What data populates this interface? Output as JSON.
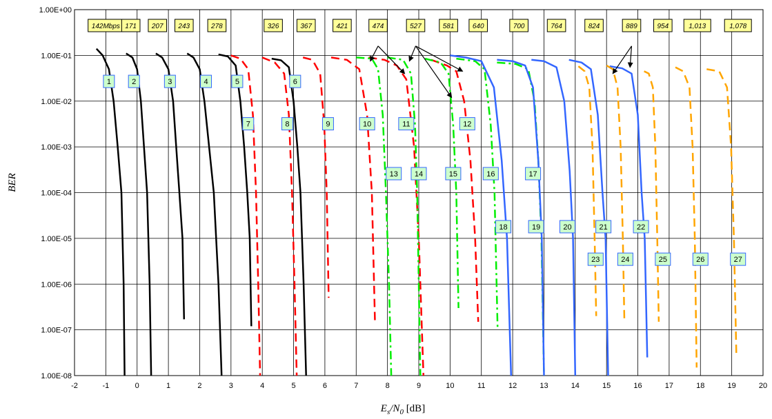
{
  "chart_data": {
    "type": "line",
    "xlabel": {
      "base1": "E",
      "sub1": "s",
      "sep": "/N",
      "sub2": "0",
      "unit": " [dB]"
    },
    "ylabel": "BER",
    "xlim": [
      -2,
      20
    ],
    "ylim_log10": [
      -8,
      0
    ],
    "y_scale": "log",
    "grid": true,
    "x_ticks": [
      "-2",
      "-1",
      "0",
      "1",
      "2",
      "3",
      "4",
      "5",
      "6",
      "7",
      "8",
      "9",
      "10",
      "11",
      "12",
      "13",
      "14",
      "15",
      "16",
      "17",
      "18",
      "19",
      "20"
    ],
    "y_ticks": [
      "1.00E+00",
      "1.00E-01",
      "1.00E-02",
      "1.00E-03",
      "1.00E-04",
      "1.00E-05",
      "1.00E-06",
      "1.00E-07",
      "1.00E-08"
    ],
    "colors": {
      "black": "#000000",
      "red": "#ff0000",
      "green": "#00ee00",
      "blue": "#3366ff",
      "orange": "#ffa500",
      "rate_box": "#ffff99",
      "num_box": "#ccffcc"
    },
    "rate_labels": [
      {
        "text": "142Mbps",
        "x": -1.0
      },
      {
        "text": "171",
        "x": -0.2
      },
      {
        "text": "207",
        "x": 0.65
      },
      {
        "text": "243",
        "x": 1.5
      },
      {
        "text": "278",
        "x": 2.55
      },
      {
        "text": "326",
        "x": 4.35
      },
      {
        "text": "367",
        "x": 5.4
      },
      {
        "text": "421",
        "x": 6.55
      },
      {
        "text": "474",
        "x": 7.7
      },
      {
        "text": "527",
        "x": 8.9
      },
      {
        "text": "581",
        "x": 9.95
      },
      {
        "text": "640",
        "x": 10.9
      },
      {
        "text": "700",
        "x": 12.2
      },
      {
        "text": "764",
        "x": 13.4
      },
      {
        "text": "824",
        "x": 14.6
      },
      {
        "text": "889",
        "x": 15.8
      },
      {
        "text": "954",
        "x": 16.8
      },
      {
        "text": "1,013",
        "x": 17.9
      },
      {
        "text": "1,078",
        "x": 19.2
      }
    ],
    "curve_labels": [
      {
        "text": "1",
        "x": -0.9,
        "y": 0.027
      },
      {
        "text": "2",
        "x": -0.1,
        "y": 0.027
      },
      {
        "text": "3",
        "x": 1.05,
        "y": 0.027
      },
      {
        "text": "4",
        "x": 2.2,
        "y": 0.027
      },
      {
        "text": "5",
        "x": 3.2,
        "y": 0.027
      },
      {
        "text": "6",
        "x": 5.05,
        "y": 0.027
      },
      {
        "text": "7",
        "x": 3.55,
        "y": 0.0032
      },
      {
        "text": "8",
        "x": 4.8,
        "y": 0.0032
      },
      {
        "text": "9",
        "x": 6.1,
        "y": 0.0032
      },
      {
        "text": "10",
        "x": 7.35,
        "y": 0.0032
      },
      {
        "text": "11",
        "x": 8.6,
        "y": 0.0032
      },
      {
        "text": "12",
        "x": 10.55,
        "y": 0.0032
      },
      {
        "text": "13",
        "x": 8.2,
        "y": 0.00026
      },
      {
        "text": "14",
        "x": 9.0,
        "y": 0.00026
      },
      {
        "text": "15",
        "x": 10.1,
        "y": 0.00026
      },
      {
        "text": "16",
        "x": 11.3,
        "y": 0.00026
      },
      {
        "text": "17",
        "x": 12.65,
        "y": 0.00026
      },
      {
        "text": "18",
        "x": 11.7,
        "y": 1.8e-05
      },
      {
        "text": "19",
        "x": 12.75,
        "y": 1.8e-05
      },
      {
        "text": "20",
        "x": 13.75,
        "y": 1.8e-05
      },
      {
        "text": "21",
        "x": 14.9,
        "y": 1.8e-05
      },
      {
        "text": "22",
        "x": 16.1,
        "y": 1.8e-05
      },
      {
        "text": "23",
        "x": 14.65,
        "y": 3.5e-06
      },
      {
        "text": "24",
        "x": 15.6,
        "y": 3.5e-06
      },
      {
        "text": "25",
        "x": 16.8,
        "y": 3.5e-06
      },
      {
        "text": "26",
        "x": 18.0,
        "y": 3.5e-06
      },
      {
        "text": "27",
        "x": 19.2,
        "y": 3.5e-06
      }
    ],
    "series": [
      {
        "id": "1",
        "color": "black",
        "dash": "solid",
        "x": [
          -1.3,
          -1.1,
          -0.9,
          -0.75,
          -0.62,
          -0.5,
          -0.43,
          -0.4
        ],
        "y": [
          0.14,
          0.1,
          0.05,
          0.01,
          0.001,
          0.0001,
          1e-06,
          1e-08
        ]
      },
      {
        "id": "2",
        "color": "black",
        "dash": "solid",
        "x": [
          -0.35,
          -0.15,
          0.0,
          0.12,
          0.22,
          0.32,
          0.4,
          0.45
        ],
        "y": [
          0.11,
          0.09,
          0.05,
          0.01,
          0.001,
          0.0001,
          1e-06,
          1e-08
        ]
      },
      {
        "id": "3",
        "color": "black",
        "dash": "solid",
        "x": [
          0.6,
          0.8,
          1.0,
          1.15,
          1.25,
          1.35,
          1.45,
          1.5
        ],
        "y": [
          0.11,
          0.09,
          0.05,
          0.01,
          0.001,
          0.0001,
          1e-05,
          1.7e-07
        ]
      },
      {
        "id": "4",
        "color": "black",
        "dash": "solid",
        "x": [
          1.6,
          1.8,
          2.0,
          2.15,
          2.3,
          2.45,
          2.6,
          2.7
        ],
        "y": [
          0.11,
          0.09,
          0.05,
          0.01,
          0.001,
          0.0001,
          1e-06,
          1e-08
        ]
      },
      {
        "id": "5",
        "color": "black",
        "dash": "solid",
        "x": [
          2.6,
          2.9,
          3.15,
          3.3,
          3.42,
          3.52,
          3.6,
          3.65
        ],
        "y": [
          0.105,
          0.095,
          0.06,
          0.01,
          0.001,
          0.0001,
          1e-05,
          1.2e-07
        ]
      },
      {
        "id": "6",
        "color": "black",
        "dash": "solid",
        "x": [
          4.3,
          4.6,
          4.85,
          5.0,
          5.12,
          5.22,
          5.32,
          5.4
        ],
        "y": [
          0.085,
          0.078,
          0.055,
          0.01,
          0.001,
          0.0001,
          1e-06,
          1e-08
        ]
      },
      {
        "id": "7",
        "color": "red",
        "dash": "dash",
        "x": [
          3.0,
          3.3,
          3.55,
          3.7,
          3.8,
          3.87,
          3.93
        ],
        "y": [
          0.1,
          0.085,
          0.05,
          0.005,
          0.0001,
          1e-06,
          1e-08
        ]
      },
      {
        "id": "8",
        "color": "red",
        "dash": "dash",
        "x": [
          4.0,
          4.4,
          4.7,
          4.85,
          4.95,
          5.03,
          5.1
        ],
        "y": [
          0.09,
          0.07,
          0.04,
          0.005,
          0.0001,
          1e-06,
          1e-08
        ]
      },
      {
        "id": "9",
        "color": "red",
        "dash": "dash",
        "x": [
          5.3,
          5.6,
          5.85,
          5.98,
          6.06,
          6.12
        ],
        "y": [
          0.09,
          0.08,
          0.04,
          0.003,
          0.0001,
          5e-07
        ]
      },
      {
        "id": "10",
        "color": "red",
        "dash": "dash",
        "x": [
          6.2,
          6.7,
          7.1,
          7.35,
          7.5,
          7.6
        ],
        "y": [
          0.09,
          0.08,
          0.05,
          0.005,
          0.0001,
          1.5e-07
        ]
      },
      {
        "id": "11",
        "color": "red",
        "dash": "dash",
        "x": [
          7.4,
          7.9,
          8.3,
          8.6,
          8.85,
          9.0,
          9.15
        ],
        "y": [
          0.09,
          0.08,
          0.06,
          0.03,
          0.001,
          1e-05,
          1e-08
        ]
      },
      {
        "id": "12",
        "color": "red",
        "dash": "dash",
        "x": [
          9.4,
          9.9,
          10.2,
          10.45,
          10.65,
          10.8,
          10.9
        ],
        "y": [
          0.08,
          0.06,
          0.045,
          0.01,
          0.0005,
          1e-05,
          1.5e-07
        ]
      },
      {
        "id": "13",
        "color": "green",
        "dash": "dashdot",
        "x": [
          7.0,
          7.5,
          7.7,
          7.85,
          7.95,
          8.05,
          8.12
        ],
        "y": [
          0.09,
          0.085,
          0.05,
          0.005,
          0.0001,
          1e-06,
          1e-08
        ]
      },
      {
        "id": "14",
        "color": "green",
        "dash": "dashdot",
        "x": [
          8.0,
          8.5,
          8.75,
          8.88,
          8.95,
          9.0,
          9.05
        ],
        "y": [
          0.09,
          0.08,
          0.04,
          0.003,
          0.0001,
          1e-06,
          1e-08
        ]
      },
      {
        "id": "15",
        "color": "green",
        "dash": "dashdot",
        "x": [
          9.2,
          9.7,
          9.95,
          10.1,
          10.2,
          10.27
        ],
        "y": [
          0.085,
          0.07,
          0.04,
          0.003,
          0.0001,
          3e-07
        ]
      },
      {
        "id": "16",
        "color": "green",
        "dash": "dashdot",
        "x": [
          10.2,
          10.8,
          11.1,
          11.3,
          11.42,
          11.52
        ],
        "y": [
          0.085,
          0.075,
          0.05,
          0.003,
          0.0001,
          1e-07
        ]
      },
      {
        "id": "17",
        "color": "green",
        "dash": "dashdot",
        "x": [
          11.5,
          12.1,
          12.5,
          12.7,
          12.82,
          12.92,
          13.0
        ],
        "y": [
          0.07,
          0.065,
          0.05,
          0.01,
          0.0005,
          1e-05,
          1e-08
        ]
      },
      {
        "id": "18",
        "color": "blue",
        "dash": "solid",
        "x": [
          10.0,
          10.5,
          11.0,
          11.4,
          11.65,
          11.82,
          11.95
        ],
        "y": [
          0.1,
          0.09,
          0.075,
          0.02,
          0.0005,
          1e-05,
          1e-08
        ]
      },
      {
        "id": "19",
        "color": "blue",
        "dash": "solid",
        "x": [
          11.5,
          12.0,
          12.4,
          12.65,
          12.82,
          12.93,
          13.0
        ],
        "y": [
          0.08,
          0.075,
          0.06,
          0.02,
          0.0005,
          1e-05,
          1e-08
        ]
      },
      {
        "id": "20",
        "color": "blue",
        "dash": "solid",
        "x": [
          12.6,
          13.0,
          13.4,
          13.65,
          13.82,
          13.93,
          14.0
        ],
        "y": [
          0.08,
          0.075,
          0.055,
          0.01,
          0.0003,
          1e-05,
          1e-08
        ]
      },
      {
        "id": "21",
        "color": "blue",
        "dash": "solid",
        "x": [
          13.8,
          14.2,
          14.5,
          14.72,
          14.87,
          14.97,
          15.05
        ],
        "y": [
          0.08,
          0.07,
          0.05,
          0.005,
          0.0001,
          1e-05,
          1e-08
        ]
      },
      {
        "id": "22",
        "color": "blue",
        "dash": "solid",
        "x": [
          15.1,
          15.5,
          15.8,
          16.0,
          16.12,
          16.22,
          16.3
        ],
        "y": [
          0.058,
          0.052,
          0.04,
          0.005,
          0.0001,
          1e-05,
          2.5e-08
        ]
      },
      {
        "id": "23",
        "color": "orange",
        "dash": "dash",
        "x": [
          14.1,
          14.3,
          14.45,
          14.55,
          14.62,
          14.67
        ],
        "y": [
          0.058,
          0.045,
          0.02,
          0.001,
          1e-05,
          2e-07
        ]
      },
      {
        "id": "24",
        "color": "orange",
        "dash": "dash",
        "x": [
          15.0,
          15.2,
          15.35,
          15.45,
          15.52,
          15.57
        ],
        "y": [
          0.06,
          0.05,
          0.02,
          0.001,
          1e-05,
          1.6e-07
        ]
      },
      {
        "id": "25",
        "color": "orange",
        "dash": "dash",
        "x": [
          16.2,
          16.35,
          16.48,
          16.56,
          16.62,
          16.67
        ],
        "y": [
          0.045,
          0.04,
          0.02,
          0.001,
          1e-05,
          1.5e-07
        ]
      },
      {
        "id": "26",
        "color": "orange",
        "dash": "dash",
        "x": [
          17.2,
          17.45,
          17.65,
          17.75,
          17.82,
          17.88
        ],
        "y": [
          0.055,
          0.045,
          0.02,
          0.001,
          1e-05,
          1.5e-08
        ]
      },
      {
        "id": "27",
        "color": "orange",
        "dash": "dash",
        "x": [
          18.2,
          18.6,
          18.85,
          18.98,
          19.07,
          19.15
        ],
        "y": [
          0.05,
          0.045,
          0.02,
          0.001,
          1e-05,
          2.5e-08
        ]
      }
    ],
    "arrows": [
      {
        "from_x": 7.7,
        "from_y": 0.16,
        "to_x": 7.45,
        "to_y": 0.075
      },
      {
        "from_x": 7.7,
        "from_y": 0.16,
        "to_x": 8.55,
        "to_y": 0.04
      },
      {
        "from_x": 8.9,
        "from_y": 0.16,
        "to_x": 8.7,
        "to_y": 0.075
      },
      {
        "from_x": 8.9,
        "from_y": 0.16,
        "to_x": 10.05,
        "to_y": 0.012
      },
      {
        "from_x": 8.9,
        "from_y": 0.16,
        "to_x": 10.4,
        "to_y": 0.045
      },
      {
        "from_x": 15.8,
        "from_y": 0.16,
        "to_x": 15.2,
        "to_y": 0.04
      },
      {
        "from_x": 15.8,
        "from_y": 0.16,
        "to_x": 15.75,
        "to_y": 0.055
      }
    ]
  }
}
